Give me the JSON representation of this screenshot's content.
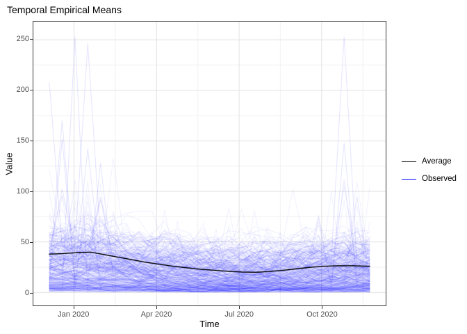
{
  "title": "Temporal Empirical Means",
  "axes": {
    "x": {
      "label": "Time",
      "domain": [
        -1.48,
        11.33
      ],
      "ticks": [
        {
          "t": 0,
          "label": "Jan 2020"
        },
        {
          "t": 3,
          "label": "Apr 2020"
        },
        {
          "t": 6,
          "label": "Jul 2020"
        },
        {
          "t": 9,
          "label": "Oct 2020"
        }
      ],
      "minor_ticks": [
        1.5,
        4.5,
        7.5,
        10.5
      ]
    },
    "y": {
      "label": "Value",
      "domain": [
        -12.8,
        268
      ],
      "ticks": [
        0,
        50,
        100,
        150,
        200,
        250
      ],
      "minor_ticks": [
        25,
        75,
        125,
        175,
        225
      ]
    }
  },
  "legend": {
    "items": [
      {
        "label": "Average",
        "color": "#000000"
      },
      {
        "label": "Observed",
        "color": "#0000ff"
      }
    ]
  },
  "colors": {
    "average": "#000000",
    "observed": "#0000ff",
    "grid_major": "#e2e2e2",
    "grid_minor": "#f1f1f1",
    "panel_border": "#333333",
    "tick_text": "#4d4d4d"
  },
  "chart_data": {
    "type": "line",
    "title": "Temporal Empirical Means",
    "xlabel": "Time",
    "ylabel": "Value",
    "x_tick_labels": [
      "Jan 2020",
      "Apr 2020",
      "Jul 2020",
      "Oct 2020"
    ],
    "y_ticks": [
      0,
      50,
      100,
      150,
      200,
      250
    ],
    "ylim": [
      -12.8,
      268
    ],
    "x_domain_months_rel_jan2020": [
      -0.9,
      10.75
    ],
    "average_series": {
      "name": "Average",
      "x_months_from_jan2020": [
        -0.9,
        -0.4,
        0.1,
        0.6,
        1.1,
        1.6,
        2.1,
        2.6,
        3.1,
        3.6,
        4.1,
        4.6,
        5.1,
        5.6,
        6.1,
        6.6,
        7.1,
        7.6,
        8.1,
        8.6,
        9.1,
        9.6,
        10.1,
        10.75
      ],
      "values": [
        38,
        38.5,
        39.5,
        40,
        37.5,
        35,
        32.5,
        30,
        28,
        26,
        24.5,
        23,
        22,
        21,
        20.3,
        20,
        20.8,
        22,
        23.5,
        25,
        26,
        26.5,
        26.5,
        26
      ]
    },
    "observed_ensemble": {
      "name": "Observed",
      "n_series": 380,
      "n_points_per_series": 26,
      "time_range_months": [
        -0.9,
        10.75
      ],
      "typical_value_band": [
        2,
        58
      ],
      "line_alpha": 0.065,
      "seed": 7,
      "notable_spikes": [
        {
          "t": 0.05,
          "value": 253
        },
        {
          "t": 0.3,
          "value": 246
        },
        {
          "t": -0.78,
          "value": 208
        },
        {
          "t": 9.65,
          "value": 253
        },
        {
          "t": -0.3,
          "value": 170
        },
        {
          "t": -0.6,
          "value": 152
        },
        {
          "t": 0.6,
          "value": 142
        },
        {
          "t": 1.1,
          "value": 128
        },
        {
          "t": 9.9,
          "value": 148
        },
        {
          "t": 10.4,
          "value": 95
        }
      ]
    }
  }
}
